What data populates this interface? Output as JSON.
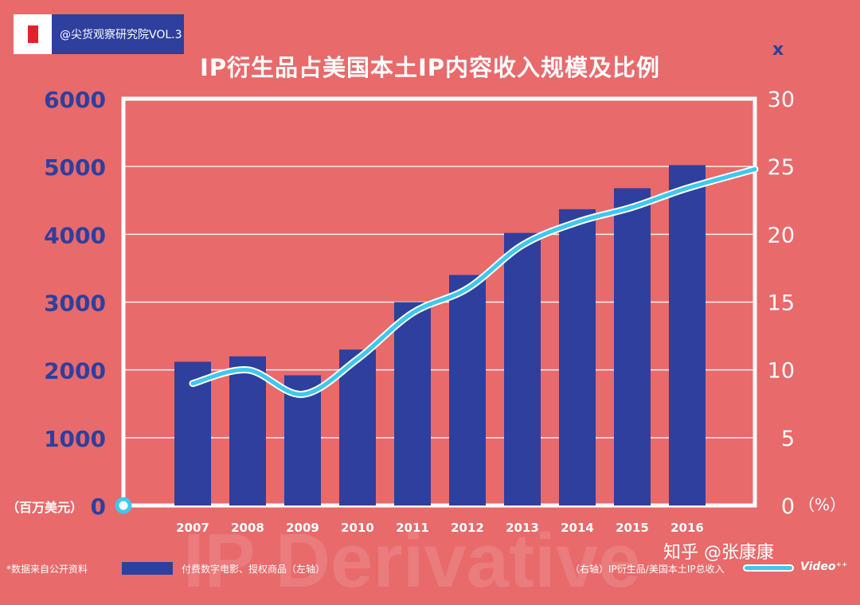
{
  "brand": {
    "text": "@尖货观察研究院VOL.3"
  },
  "watermark": "知乎 @张康康",
  "video_mark": "Video⁺⁺",
  "background_text": "IP Derivative",
  "footer": {
    "note": "*数据来自公开资料",
    "legend_bar": "付费数字电影、授权商品（左轴）",
    "legend_line": "（右轴）IP衍生品/美国本土IP总收入"
  },
  "colors": {
    "background": "#e86a6b",
    "bar": "#2e3f9e",
    "line": "#3ec8ee",
    "white": "#ffffff"
  },
  "chart_data": {
    "type": "bar",
    "title": "IP衍生品占美国本土IP内容收入规模及比例",
    "categories": [
      "2007",
      "2008",
      "2009",
      "2010",
      "2011",
      "2012",
      "2013",
      "2014",
      "2015",
      "2016"
    ],
    "left_axis": {
      "ticks": [
        "0",
        "1000",
        "2000",
        "3000",
        "4000",
        "5000",
        "6000"
      ],
      "unit": "（百万美元）",
      "ylim": [
        0,
        6000
      ]
    },
    "right_axis": {
      "ticks": [
        "0",
        "5",
        "10",
        "15",
        "20",
        "25",
        "30"
      ],
      "unit": "（%）",
      "ylim": [
        0,
        30
      ],
      "marker": "x"
    },
    "series": [
      {
        "name": "付费数字电影、授权商品（左轴）",
        "type": "bar",
        "axis": "left",
        "values": [
          2120,
          2200,
          1920,
          2300,
          3000,
          3400,
          4020,
          4370,
          4680,
          5020
        ]
      },
      {
        "name": "（右轴）IP衍生品/美国本土IP总收入",
        "type": "line",
        "axis": "right",
        "x": [
          "2007",
          "2008",
          "2009",
          "2010",
          "2011",
          "2012",
          "2013",
          "2014",
          "2015",
          "2016",
          ""
        ],
        "values": [
          9.0,
          10.0,
          8.2,
          10.8,
          14.2,
          16.0,
          19.2,
          20.9,
          22.0,
          23.4,
          24.8
        ]
      }
    ]
  }
}
